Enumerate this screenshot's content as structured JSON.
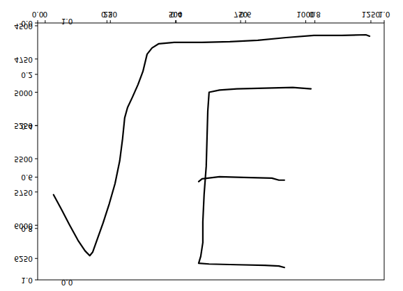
{
  "chart_data": [
    {
      "type": "line",
      "xlim": [
        0,
        1
      ],
      "ylim": [
        0,
        1
      ],
      "xticks": [
        {
          "value": 0,
          "label": "0.0"
        },
        {
          "value": 0.2,
          "label": "0.2"
        },
        {
          "value": 0.4,
          "label": "0.4"
        },
        {
          "value": 0.6,
          "label": "0.6"
        },
        {
          "value": 0.8,
          "label": "0.8"
        },
        {
          "value": 1,
          "label": "1.0"
        }
      ],
      "yticks": [
        {
          "value": 0,
          "label": "0.0"
        },
        {
          "value": 0.2,
          "label": "0.2"
        },
        {
          "value": 0.4,
          "label": "0.4"
        },
        {
          "value": 0.6,
          "label": "0.6"
        },
        {
          "value": 0.8,
          "label": "0.8"
        },
        {
          "value": 1,
          "label": "1.0"
        }
      ],
      "series": []
    },
    {
      "type": "line",
      "xlim": [
        -29,
        1301
      ],
      "ylim": [
        4479,
        6411
      ],
      "xticks": [
        0,
        250,
        500,
        750,
        1000,
        1250
      ],
      "yticks": [
        4500,
        4750,
        5000,
        5250,
        5500,
        5750,
        6000,
        6250
      ],
      "color": "#000000",
      "series": [
        {
          "x": [
            32,
            62,
            94,
            126,
            153,
            171,
            182,
            201,
            222,
            246,
            268,
            286,
            297,
            305,
            316,
            335,
            356,
            375,
            391,
            410,
            436,
            495,
            602,
            709,
            816,
            924,
            1031,
            1138,
            1231,
            1245
          ],
          "values": [
            5771,
            5880,
            6000,
            6114,
            6193,
            6229,
            6203,
            6099,
            5984,
            5838,
            5687,
            5516,
            5349,
            5193,
            5115,
            5036,
            4943,
            4844,
            4714,
            4667,
            4635,
            4625,
            4625,
            4620,
            4609,
            4589,
            4573,
            4573,
            4568,
            4578
          ]
        },
        {
          "x": [
            1020,
            950,
            843,
            736,
            669,
            629,
            624,
            621,
            618,
            610,
            605,
            605,
            597,
            589,
            629,
            736,
            843,
            897,
            918
          ],
          "values": [
            4974,
            4964,
            4969,
            4974,
            4984,
            5000,
            5141,
            5349,
            5557,
            5766,
            5974,
            6130,
            6234,
            6286,
            6292,
            6297,
            6302,
            6307,
            6318
          ]
        },
        {
          "x": [
            589,
            602,
            669,
            763,
            870,
            897,
            918
          ],
          "values": [
            5672,
            5651,
            5635,
            5641,
            5646,
            5661,
            5661
          ]
        }
      ]
    },
    {
      "type": "line",
      "ylim": [
        1,
        0
      ],
      "yticks": [
        {
          "value": 0,
          "label": "0.0"
        },
        {
          "value": 1,
          "label": "1.0"
        }
      ],
      "tick_labels": "y",
      "series": []
    }
  ]
}
